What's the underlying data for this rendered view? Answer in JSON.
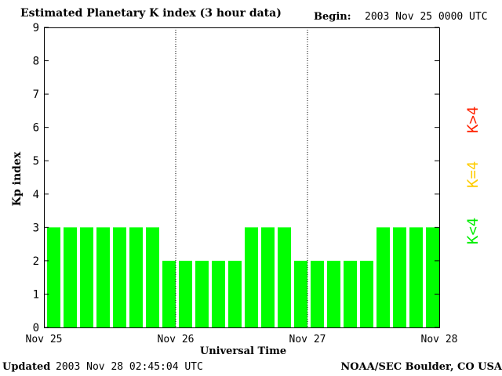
{
  "header": {
    "title": "Estimated Planetary K index (3 hour data)",
    "begin_label": "Begin:",
    "begin_value": "2003 Nov 25 0000 UTC"
  },
  "footer": {
    "updated_label": "Updated",
    "updated_value": "2003 Nov 28 02:45:04 UTC",
    "credit": "NOAA/SEC Boulder, CO USA"
  },
  "legend": {
    "items": [
      {
        "label": "K<4",
        "color": "#00ee00"
      },
      {
        "label": "K=4",
        "color": "#ffcc00"
      },
      {
        "label": "K>4",
        "color": "#ff2200"
      }
    ]
  },
  "colors": {
    "bar_low": "#00ff00",
    "bar_mid": "#ffcc00",
    "bar_high": "#ff2200"
  },
  "chart_data": {
    "type": "bar",
    "title": "Estimated Planetary K index (3 hour data)",
    "xlabel": "Universal Time",
    "ylabel": "Kp index",
    "ylim": [
      0,
      9
    ],
    "yticks": [
      "0",
      "1",
      "2",
      "3",
      "4",
      "5",
      "6",
      "7",
      "8",
      "9"
    ],
    "xticks": [
      "Nov 25",
      "Nov 26",
      "Nov 27",
      "Nov 28"
    ],
    "bars_per_day": 8,
    "values": [
      3,
      3,
      3,
      3,
      3,
      3,
      3,
      2,
      2,
      2,
      2,
      2,
      3,
      3,
      3,
      2,
      2,
      2,
      2,
      2,
      3,
      3,
      3,
      3
    ],
    "day_separators": "dotted",
    "grid": false
  }
}
